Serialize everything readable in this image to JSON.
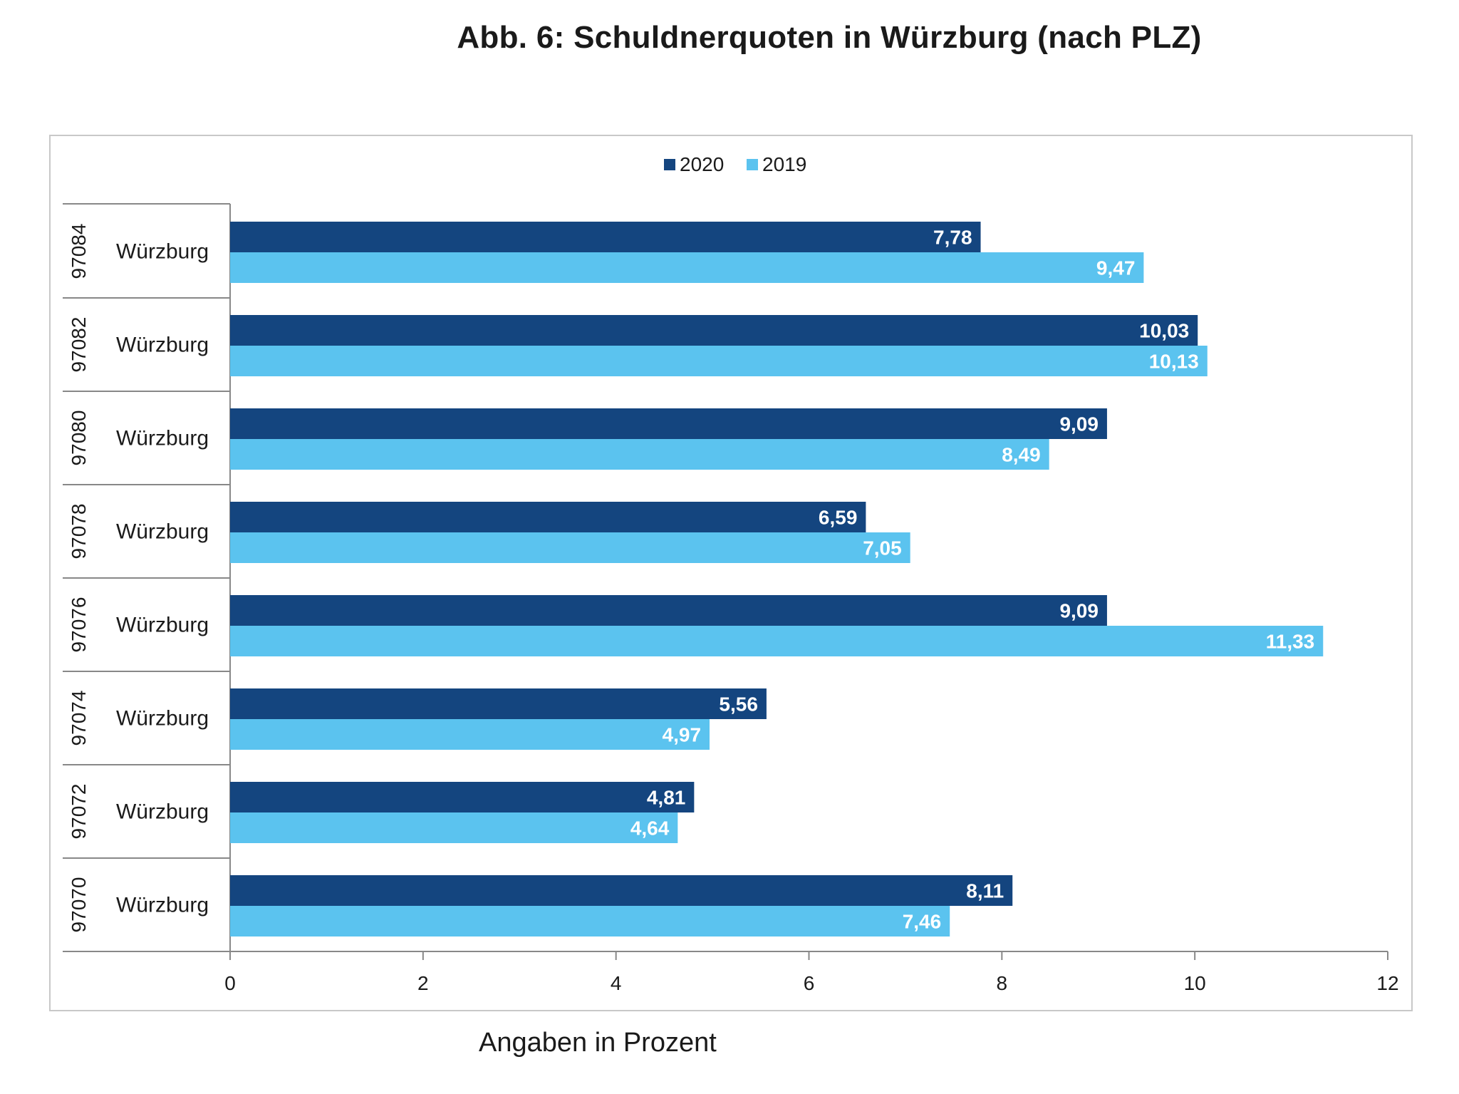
{
  "title": "Abb. 6:  Schuldnerquoten in Würzburg (nach PLZ)",
  "footnote": "Angaben in Prozent",
  "colors": {
    "series_2020": "#14457f",
    "series_2019": "#5bc3ef"
  },
  "chart_data": {
    "type": "bar",
    "orientation": "horizontal",
    "title": "Abb. 6:  Schuldnerquoten in Würzburg (nach PLZ)",
    "categories": [
      {
        "plz": "97084",
        "city": "Würzburg"
      },
      {
        "plz": "97082",
        "city": "Würzburg"
      },
      {
        "plz": "97080",
        "city": "Würzburg"
      },
      {
        "plz": "97078",
        "city": "Würzburg"
      },
      {
        "plz": "97076",
        "city": "Würzburg"
      },
      {
        "plz": "97074",
        "city": "Würzburg"
      },
      {
        "plz": "97072",
        "city": "Würzburg"
      },
      {
        "plz": "97070",
        "city": "Würzburg"
      }
    ],
    "series": [
      {
        "name": "2020",
        "values": [
          7.78,
          10.03,
          9.09,
          6.59,
          9.09,
          5.56,
          4.81,
          8.11
        ],
        "labels": [
          "7,78",
          "10,03",
          "9,09",
          "6,59",
          "9,09",
          "5,56",
          "4,81",
          "8,11"
        ]
      },
      {
        "name": "2019",
        "values": [
          9.47,
          10.13,
          8.49,
          7.05,
          11.33,
          4.97,
          4.64,
          7.46
        ],
        "labels": [
          "9,47",
          "10,13",
          "8,49",
          "7,05",
          "11,33",
          "4,97",
          "4,64",
          "7,46"
        ]
      }
    ],
    "xlim": [
      0,
      12
    ],
    "xticks": [
      0,
      2,
      4,
      6,
      8,
      10,
      12
    ],
    "xlabel": "Angaben in Prozent",
    "ylabel": "",
    "grid": false,
    "legend": "top-center"
  }
}
